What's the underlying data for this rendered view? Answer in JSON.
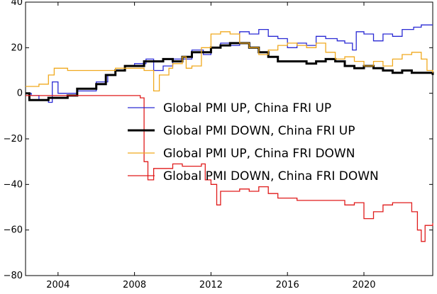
{
  "chart_data": {
    "type": "line",
    "xlim": [
      2002.3,
      2023.6
    ],
    "ylim": [
      -80,
      40
    ],
    "x_ticks": [
      2004,
      2008,
      2012,
      2016,
      2020
    ],
    "y_ticks": [
      -80,
      -60,
      -40,
      -20,
      0,
      20,
      40
    ],
    "x_tick_labels": [
      "2004",
      "2008",
      "2012",
      "2016",
      "2020"
    ],
    "y_tick_labels": [
      "−80",
      "−60",
      "−40",
      "−20",
      "0",
      "20",
      "40"
    ],
    "grid": false,
    "legend_position": "center-right",
    "series": [
      {
        "name": "Global PMI UP, China FRI UP",
        "color": "#2a2ad4",
        "line_width": 1.3,
        "step": true,
        "points": [
          [
            2002.3,
            0
          ],
          [
            2002.6,
            -1
          ],
          [
            2003.0,
            -3
          ],
          [
            2003.5,
            -4
          ],
          [
            2003.7,
            5
          ],
          [
            2004.0,
            0
          ],
          [
            2004.5,
            0
          ],
          [
            2005.0,
            1
          ],
          [
            2005.5,
            1
          ],
          [
            2006.0,
            5
          ],
          [
            2006.6,
            8
          ],
          [
            2007.0,
            10
          ],
          [
            2007.5,
            12
          ],
          [
            2008.0,
            13
          ],
          [
            2008.6,
            15
          ],
          [
            2009.0,
            10
          ],
          [
            2009.5,
            12
          ],
          [
            2010.0,
            15
          ],
          [
            2010.6,
            15
          ],
          [
            2011.0,
            19
          ],
          [
            2011.6,
            17
          ],
          [
            2012.0,
            20
          ],
          [
            2012.5,
            22
          ],
          [
            2013.0,
            21
          ],
          [
            2013.5,
            27
          ],
          [
            2014.0,
            26
          ],
          [
            2014.5,
            28
          ],
          [
            2015.0,
            25
          ],
          [
            2015.5,
            24
          ],
          [
            2016.0,
            20
          ],
          [
            2016.5,
            22
          ],
          [
            2017.0,
            21
          ],
          [
            2017.5,
            25
          ],
          [
            2018.0,
            24
          ],
          [
            2018.6,
            23
          ],
          [
            2019.0,
            22
          ],
          [
            2019.4,
            19
          ],
          [
            2019.6,
            27
          ],
          [
            2020.0,
            26
          ],
          [
            2020.5,
            23
          ],
          [
            2021.0,
            26
          ],
          [
            2021.5,
            25
          ],
          [
            2022.0,
            28
          ],
          [
            2022.6,
            29
          ],
          [
            2023.0,
            30
          ],
          [
            2023.6,
            30
          ]
        ]
      },
      {
        "name": "Global PMI DOWN, China FRI UP",
        "color": "#000000",
        "line_width": 3,
        "step": true,
        "points": [
          [
            2002.3,
            0
          ],
          [
            2002.5,
            -3
          ],
          [
            2003.5,
            -2
          ],
          [
            2004.5,
            -1
          ],
          [
            2005.0,
            2
          ],
          [
            2005.5,
            2
          ],
          [
            2006.0,
            4
          ],
          [
            2006.5,
            8
          ],
          [
            2007.0,
            10
          ],
          [
            2007.5,
            12
          ],
          [
            2008.0,
            12
          ],
          [
            2008.5,
            14
          ],
          [
            2009.0,
            14
          ],
          [
            2009.5,
            15
          ],
          [
            2010.0,
            14
          ],
          [
            2010.5,
            16
          ],
          [
            2011.0,
            18
          ],
          [
            2011.5,
            18
          ],
          [
            2012.0,
            20
          ],
          [
            2012.5,
            21
          ],
          [
            2013.0,
            22
          ],
          [
            2013.5,
            22
          ],
          [
            2014.0,
            20
          ],
          [
            2014.5,
            18
          ],
          [
            2015.0,
            16
          ],
          [
            2015.5,
            14
          ],
          [
            2016.0,
            14
          ],
          [
            2016.5,
            14
          ],
          [
            2017.0,
            13
          ],
          [
            2017.5,
            14
          ],
          [
            2018.0,
            15
          ],
          [
            2018.5,
            14
          ],
          [
            2019.0,
            12
          ],
          [
            2019.5,
            11
          ],
          [
            2020.0,
            12
          ],
          [
            2020.5,
            11
          ],
          [
            2021.0,
            10
          ],
          [
            2021.5,
            9
          ],
          [
            2022.0,
            10
          ],
          [
            2022.5,
            9
          ],
          [
            2023.0,
            9
          ],
          [
            2023.6,
            8
          ]
        ]
      },
      {
        "name": "Global PMI UP, China FRI DOWN",
        "color": "#f0a91e",
        "line_width": 1.3,
        "step": true,
        "points": [
          [
            2002.3,
            3
          ],
          [
            2003.0,
            4
          ],
          [
            2003.5,
            8
          ],
          [
            2003.8,
            11
          ],
          [
            2004.5,
            10
          ],
          [
            2005.0,
            10
          ],
          [
            2005.5,
            10
          ],
          [
            2006.0,
            10
          ],
          [
            2006.5,
            10
          ],
          [
            2007.0,
            11
          ],
          [
            2007.5,
            11
          ],
          [
            2008.0,
            11
          ],
          [
            2008.5,
            10
          ],
          [
            2009.0,
            1
          ],
          [
            2009.3,
            8
          ],
          [
            2009.8,
            11
          ],
          [
            2010.0,
            13
          ],
          [
            2010.5,
            16
          ],
          [
            2010.7,
            11
          ],
          [
            2011.0,
            12
          ],
          [
            2011.5,
            20
          ],
          [
            2012.0,
            26
          ],
          [
            2012.5,
            27
          ],
          [
            2013.0,
            26
          ],
          [
            2013.5,
            22
          ],
          [
            2014.0,
            20
          ],
          [
            2014.5,
            17
          ],
          [
            2015.0,
            19
          ],
          [
            2015.5,
            21
          ],
          [
            2016.0,
            22
          ],
          [
            2016.5,
            21
          ],
          [
            2017.0,
            20
          ],
          [
            2017.5,
            22
          ],
          [
            2018.0,
            18
          ],
          [
            2018.5,
            15
          ],
          [
            2019.0,
            16
          ],
          [
            2019.5,
            14
          ],
          [
            2020.0,
            12
          ],
          [
            2020.5,
            14
          ],
          [
            2021.0,
            12
          ],
          [
            2021.5,
            15
          ],
          [
            2022.0,
            17
          ],
          [
            2022.5,
            18
          ],
          [
            2023.0,
            15
          ],
          [
            2023.3,
            10
          ],
          [
            2023.6,
            9
          ]
        ]
      },
      {
        "name": "Global PMI DOWN, China FRI DOWN",
        "color": "#e01b1b",
        "line_width": 1.3,
        "step": true,
        "points": [
          [
            2002.3,
            -1
          ],
          [
            2004.0,
            -1
          ],
          [
            2006.0,
            -1
          ],
          [
            2007.5,
            -1
          ],
          [
            2008.0,
            -1
          ],
          [
            2008.3,
            -2
          ],
          [
            2008.5,
            -30
          ],
          [
            2008.7,
            -38
          ],
          [
            2009.0,
            -33
          ],
          [
            2009.5,
            -33
          ],
          [
            2010.0,
            -31
          ],
          [
            2010.5,
            -32
          ],
          [
            2011.0,
            -32
          ],
          [
            2011.5,
            -31
          ],
          [
            2011.7,
            -38
          ],
          [
            2012.0,
            -40
          ],
          [
            2012.3,
            -49
          ],
          [
            2012.5,
            -43
          ],
          [
            2013.0,
            -43
          ],
          [
            2013.5,
            -42
          ],
          [
            2014.0,
            -43
          ],
          [
            2014.5,
            -41
          ],
          [
            2015.0,
            -44
          ],
          [
            2015.5,
            -46
          ],
          [
            2016.0,
            -46
          ],
          [
            2016.5,
            -47
          ],
          [
            2017.0,
            -47
          ],
          [
            2017.5,
            -47
          ],
          [
            2018.0,
            -47
          ],
          [
            2018.5,
            -47
          ],
          [
            2019.0,
            -49
          ],
          [
            2019.5,
            -48
          ],
          [
            2020.0,
            -55
          ],
          [
            2020.5,
            -52
          ],
          [
            2021.0,
            -49
          ],
          [
            2021.5,
            -48
          ],
          [
            2022.0,
            -48
          ],
          [
            2022.5,
            -52
          ],
          [
            2022.8,
            -60
          ],
          [
            2023.0,
            -65
          ],
          [
            2023.2,
            -58
          ],
          [
            2023.6,
            -57
          ]
        ]
      }
    ]
  }
}
